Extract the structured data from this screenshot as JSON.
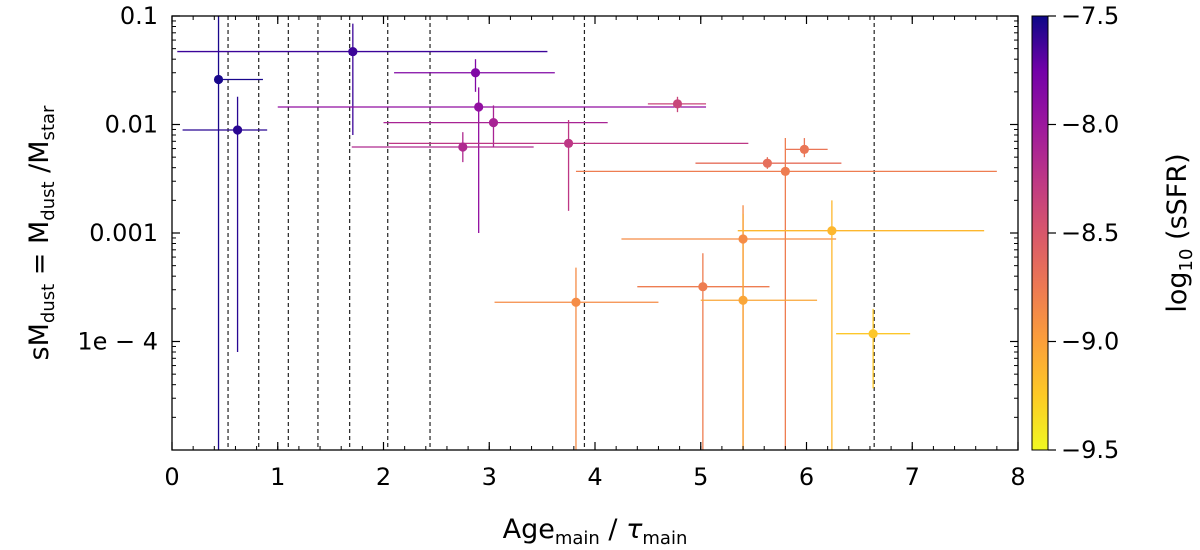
{
  "chart_data": {
    "type": "scatter",
    "xlabel": {
      "main": "Age",
      "main_sub": "main",
      "sep": " / ",
      "tau": "τ",
      "tau_sub": "main"
    },
    "ylabel": {
      "p1": "sM",
      "p1_sub": "dust",
      "p2": " = M",
      "p2_sub": "dust",
      "p3": " /M",
      "p3_sub": "star"
    },
    "xlim": [
      0,
      8
    ],
    "ylim": [
      1e-05,
      0.1
    ],
    "yscale": "log",
    "x_ticks": [
      {
        "value": 0,
        "label": "0"
      },
      {
        "value": 1,
        "label": "1"
      },
      {
        "value": 2,
        "label": "2"
      },
      {
        "value": 3,
        "label": "3"
      },
      {
        "value": 4,
        "label": "4"
      },
      {
        "value": 5,
        "label": "5"
      },
      {
        "value": 6,
        "label": "6"
      },
      {
        "value": 7,
        "label": "7"
      },
      {
        "value": 8,
        "label": "8"
      }
    ],
    "y_ticks": [
      {
        "value": 0.1,
        "label": "0.1"
      },
      {
        "value": 0.01,
        "label": "0.01"
      },
      {
        "value": 0.001,
        "label": "0.001"
      },
      {
        "value": 0.0001,
        "label": "1e − 4"
      }
    ],
    "vertical_dashed_lines": [
      0.53,
      0.82,
      1.1,
      1.38,
      1.68,
      2.04,
      2.44,
      3.9,
      6.64
    ],
    "colorbar": {
      "label_prefix": "log",
      "label_sub": "10",
      "label_suffix": " (sSFR)",
      "range": [
        -9.5,
        -7.5
      ],
      "ticks": [
        {
          "value": -7.5,
          "label": "−7.5"
        },
        {
          "value": -8.0,
          "label": "−8.0"
        },
        {
          "value": -8.5,
          "label": "−8.5"
        },
        {
          "value": -9.0,
          "label": "−9.0"
        },
        {
          "value": -9.5,
          "label": "−9.5"
        }
      ],
      "colormap": "plasma"
    },
    "points": [
      {
        "x": 0.44,
        "y": 0.026,
        "xerr": [
          0.44,
          0.86
        ],
        "yerr": [
          1.01e-05,
          0.1
        ],
        "ssfr": -7.55
      },
      {
        "x": 0.62,
        "y": 0.0089,
        "xerr": [
          0.1,
          0.9
        ],
        "yerr": [
          8e-05,
          0.018
        ],
        "ssfr": -7.62
      },
      {
        "x": 1.71,
        "y": 0.047,
        "xerr": [
          0.05,
          3.55
        ],
        "yerr": [
          0.008,
          0.085
        ],
        "ssfr": -7.7
      },
      {
        "x": 2.87,
        "y": 0.03,
        "xerr": [
          2.1,
          3.62
        ],
        "yerr": [
          0.02,
          0.04
        ],
        "ssfr": -8.05
      },
      {
        "x": 2.9,
        "y": 0.0145,
        "xerr": [
          1.0,
          5.05
        ],
        "yerr": [
          0.001,
          0.022
        ],
        "ssfr": -8.15
      },
      {
        "x": 3.04,
        "y": 0.0104,
        "xerr": [
          2.0,
          4.12
        ],
        "yerr": [
          0.0062,
          0.015
        ],
        "ssfr": -8.3
      },
      {
        "x": 2.75,
        "y": 0.0062,
        "xerr": [
          1.7,
          3.42
        ],
        "yerr": [
          0.0045,
          0.0085
        ],
        "ssfr": -8.35
      },
      {
        "x": 3.75,
        "y": 0.0067,
        "xerr": [
          2.05,
          5.45
        ],
        "yerr": [
          0.0016,
          0.011
        ],
        "ssfr": -8.45
      },
      {
        "x": 4.78,
        "y": 0.0155,
        "xerr": [
          4.5,
          5.05
        ],
        "yerr": [
          0.013,
          0.018
        ],
        "ssfr": -8.55
      },
      {
        "x": 5.63,
        "y": 0.0044,
        "xerr": [
          4.95,
          6.33
        ],
        "yerr": [
          0.0039,
          0.005
        ],
        "ssfr": -8.85
      },
      {
        "x": 5.98,
        "y": 0.0059,
        "xerr": [
          5.8,
          6.2
        ],
        "yerr": [
          0.005,
          0.0075
        ],
        "ssfr": -8.9
      },
      {
        "x": 5.8,
        "y": 0.0037,
        "xerr": [
          3.82,
          7.8
        ],
        "yerr": [
          1e-05,
          0.0075
        ],
        "ssfr": -8.95
      },
      {
        "x": 5.4,
        "y": 0.00088,
        "xerr": [
          4.25,
          6.28
        ],
        "yerr": [
          1e-05,
          0.0018
        ],
        "ssfr": -9.05
      },
      {
        "x": 5.02,
        "y": 0.00032,
        "xerr": [
          4.4,
          5.65
        ],
        "yerr": [
          1e-05,
          0.00065
        ],
        "ssfr": -8.95
      },
      {
        "x": 3.82,
        "y": 0.00023,
        "xerr": [
          3.05,
          4.6
        ],
        "yerr": [
          1e-05,
          0.00048
        ],
        "ssfr": -9.05
      },
      {
        "x": 5.4,
        "y": 0.00024,
        "xerr": [
          5.0,
          6.1
        ],
        "yerr": [
          1e-05,
          0.0015
        ],
        "ssfr": -9.2
      },
      {
        "x": 6.24,
        "y": 0.00105,
        "xerr": [
          5.35,
          7.68
        ],
        "yerr": [
          1e-05,
          0.002
        ],
        "ssfr": -9.3
      },
      {
        "x": 6.63,
        "y": 0.000118,
        "xerr": [
          6.28,
          6.98
        ],
        "yerr": [
          3.7e-05,
          0.0002
        ],
        "ssfr": -9.4
      }
    ]
  }
}
